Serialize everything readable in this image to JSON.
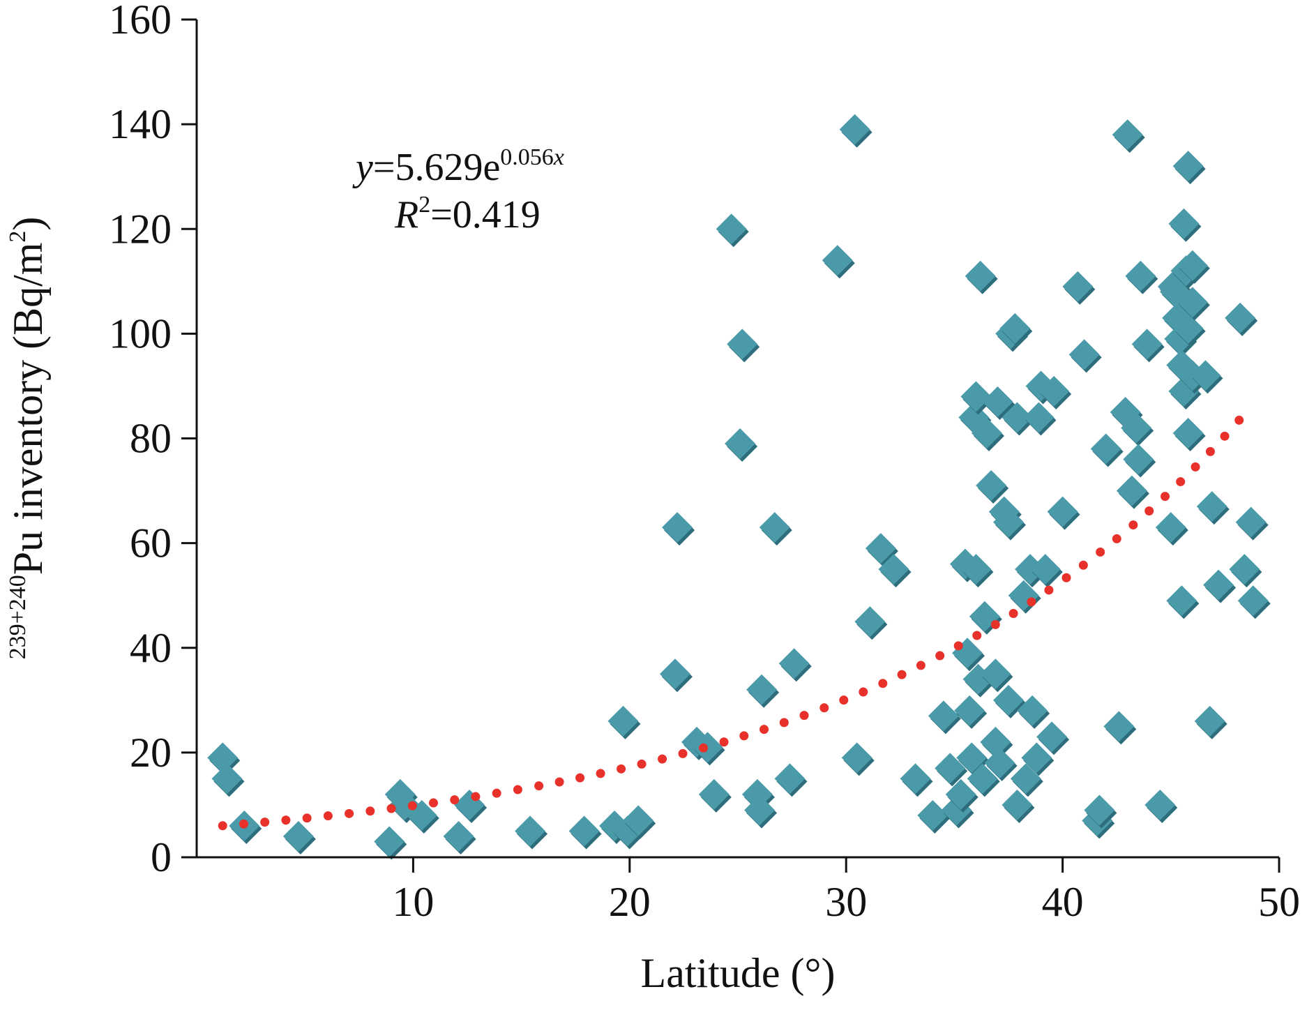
{
  "chart_data": {
    "type": "scatter",
    "xlabel": "Latitude (°)",
    "ylabel": {
      "superscript": "239+240",
      "main": "Pu inventory (Bq/m",
      "unit_superscript": "2",
      "end": ")"
    },
    "xlim": [
      0,
      50
    ],
    "ylim": [
      0,
      160
    ],
    "x_ticks": [
      10,
      20,
      30,
      40,
      50
    ],
    "y_ticks": [
      0,
      20,
      40,
      60,
      80,
      100,
      120,
      140,
      160
    ],
    "grid": false,
    "legend": "none",
    "marker": "diamond",
    "colors": {
      "marker": "#4a9aaa",
      "marker_shadow": "#2e6e7c",
      "trend": "#e8312a",
      "axis": "#111111"
    },
    "equation": {
      "y_var": "y",
      "eq_main": "=5.629e",
      "eq_exp_num": "0.056",
      "eq_exp_var": "x",
      "r_var": "R",
      "r_sup": "2",
      "r_value": "=0.419"
    },
    "trendline": {
      "type": "exponential",
      "a": 5.629,
      "b": 0.056,
      "x_range": [
        1.2,
        48.7
      ],
      "style": "dotted"
    },
    "points": [
      [
        1.2,
        19
      ],
      [
        1.4,
        15
      ],
      [
        2.2,
        6
      ],
      [
        4.7,
        4
      ],
      [
        8.9,
        3
      ],
      [
        9.4,
        12
      ],
      [
        9.6,
        10
      ],
      [
        10.4,
        8
      ],
      [
        12.1,
        4
      ],
      [
        12.6,
        10
      ],
      [
        15.4,
        5
      ],
      [
        17.9,
        5
      ],
      [
        19.3,
        6
      ],
      [
        19.9,
        5
      ],
      [
        20.4,
        7
      ],
      [
        19.7,
        26
      ],
      [
        22.1,
        35
      ],
      [
        22.2,
        63
      ],
      [
        23.1,
        22
      ],
      [
        23.6,
        21
      ],
      [
        23.9,
        12
      ],
      [
        24.7,
        120
      ],
      [
        25.2,
        98
      ],
      [
        25.1,
        79
      ],
      [
        25.9,
        12
      ],
      [
        26.0,
        9
      ],
      [
        26.1,
        32
      ],
      [
        26.7,
        63
      ],
      [
        27.4,
        15
      ],
      [
        27.6,
        37
      ],
      [
        29.6,
        114
      ],
      [
        30.4,
        139
      ],
      [
        30.5,
        19
      ],
      [
        31.1,
        45
      ],
      [
        31.6,
        59
      ],
      [
        32.2,
        55
      ],
      [
        33.2,
        15
      ],
      [
        34.0,
        8
      ],
      [
        34.5,
        27
      ],
      [
        34.8,
        17
      ],
      [
        35.1,
        9
      ],
      [
        35.3,
        12
      ],
      [
        35.5,
        56
      ],
      [
        35.6,
        39
      ],
      [
        35.7,
        28
      ],
      [
        35.8,
        19
      ],
      [
        35.9,
        84
      ],
      [
        36.0,
        88
      ],
      [
        36.0,
        55
      ],
      [
        36.1,
        34
      ],
      [
        36.2,
        111
      ],
      [
        36.3,
        15
      ],
      [
        36.4,
        46
      ],
      [
        36.5,
        81
      ],
      [
        36.7,
        71
      ],
      [
        36.9,
        22
      ],
      [
        36.9,
        35
      ],
      [
        37.0,
        87
      ],
      [
        37.1,
        18
      ],
      [
        37.3,
        66
      ],
      [
        37.5,
        64
      ],
      [
        37.5,
        30
      ],
      [
        37.6,
        100
      ],
      [
        37.8,
        101
      ],
      [
        37.9,
        84
      ],
      [
        37.9,
        10
      ],
      [
        38.2,
        50
      ],
      [
        38.3,
        15
      ],
      [
        38.5,
        55
      ],
      [
        38.6,
        28
      ],
      [
        38.8,
        19
      ],
      [
        38.9,
        84
      ],
      [
        39.0,
        90
      ],
      [
        39.2,
        55
      ],
      [
        39.5,
        23
      ],
      [
        39.6,
        89
      ],
      [
        40.0,
        66
      ],
      [
        40.7,
        109
      ],
      [
        41.0,
        96
      ],
      [
        41.6,
        7
      ],
      [
        41.7,
        9
      ],
      [
        42.0,
        78
      ],
      [
        42.6,
        25
      ],
      [
        42.9,
        85
      ],
      [
        43.0,
        138
      ],
      [
        43.2,
        70
      ],
      [
        43.4,
        82
      ],
      [
        43.5,
        76
      ],
      [
        43.6,
        111
      ],
      [
        43.9,
        98
      ],
      [
        44.5,
        10
      ],
      [
        45.0,
        63
      ],
      [
        45.1,
        109
      ],
      [
        45.2,
        108
      ],
      [
        45.3,
        103
      ],
      [
        45.4,
        99
      ],
      [
        45.5,
        94
      ],
      [
        45.5,
        49
      ],
      [
        45.6,
        121
      ],
      [
        45.6,
        89
      ],
      [
        45.7,
        112
      ],
      [
        45.8,
        101
      ],
      [
        45.8,
        132
      ],
      [
        45.8,
        81
      ],
      [
        46.0,
        113
      ],
      [
        46.0,
        92
      ],
      [
        46.0,
        106
      ],
      [
        46.6,
        92
      ],
      [
        46.8,
        26
      ],
      [
        46.9,
        67
      ],
      [
        47.2,
        52
      ],
      [
        48.2,
        103
      ],
      [
        48.4,
        55
      ],
      [
        48.7,
        64
      ],
      [
        48.8,
        49
      ]
    ]
  }
}
